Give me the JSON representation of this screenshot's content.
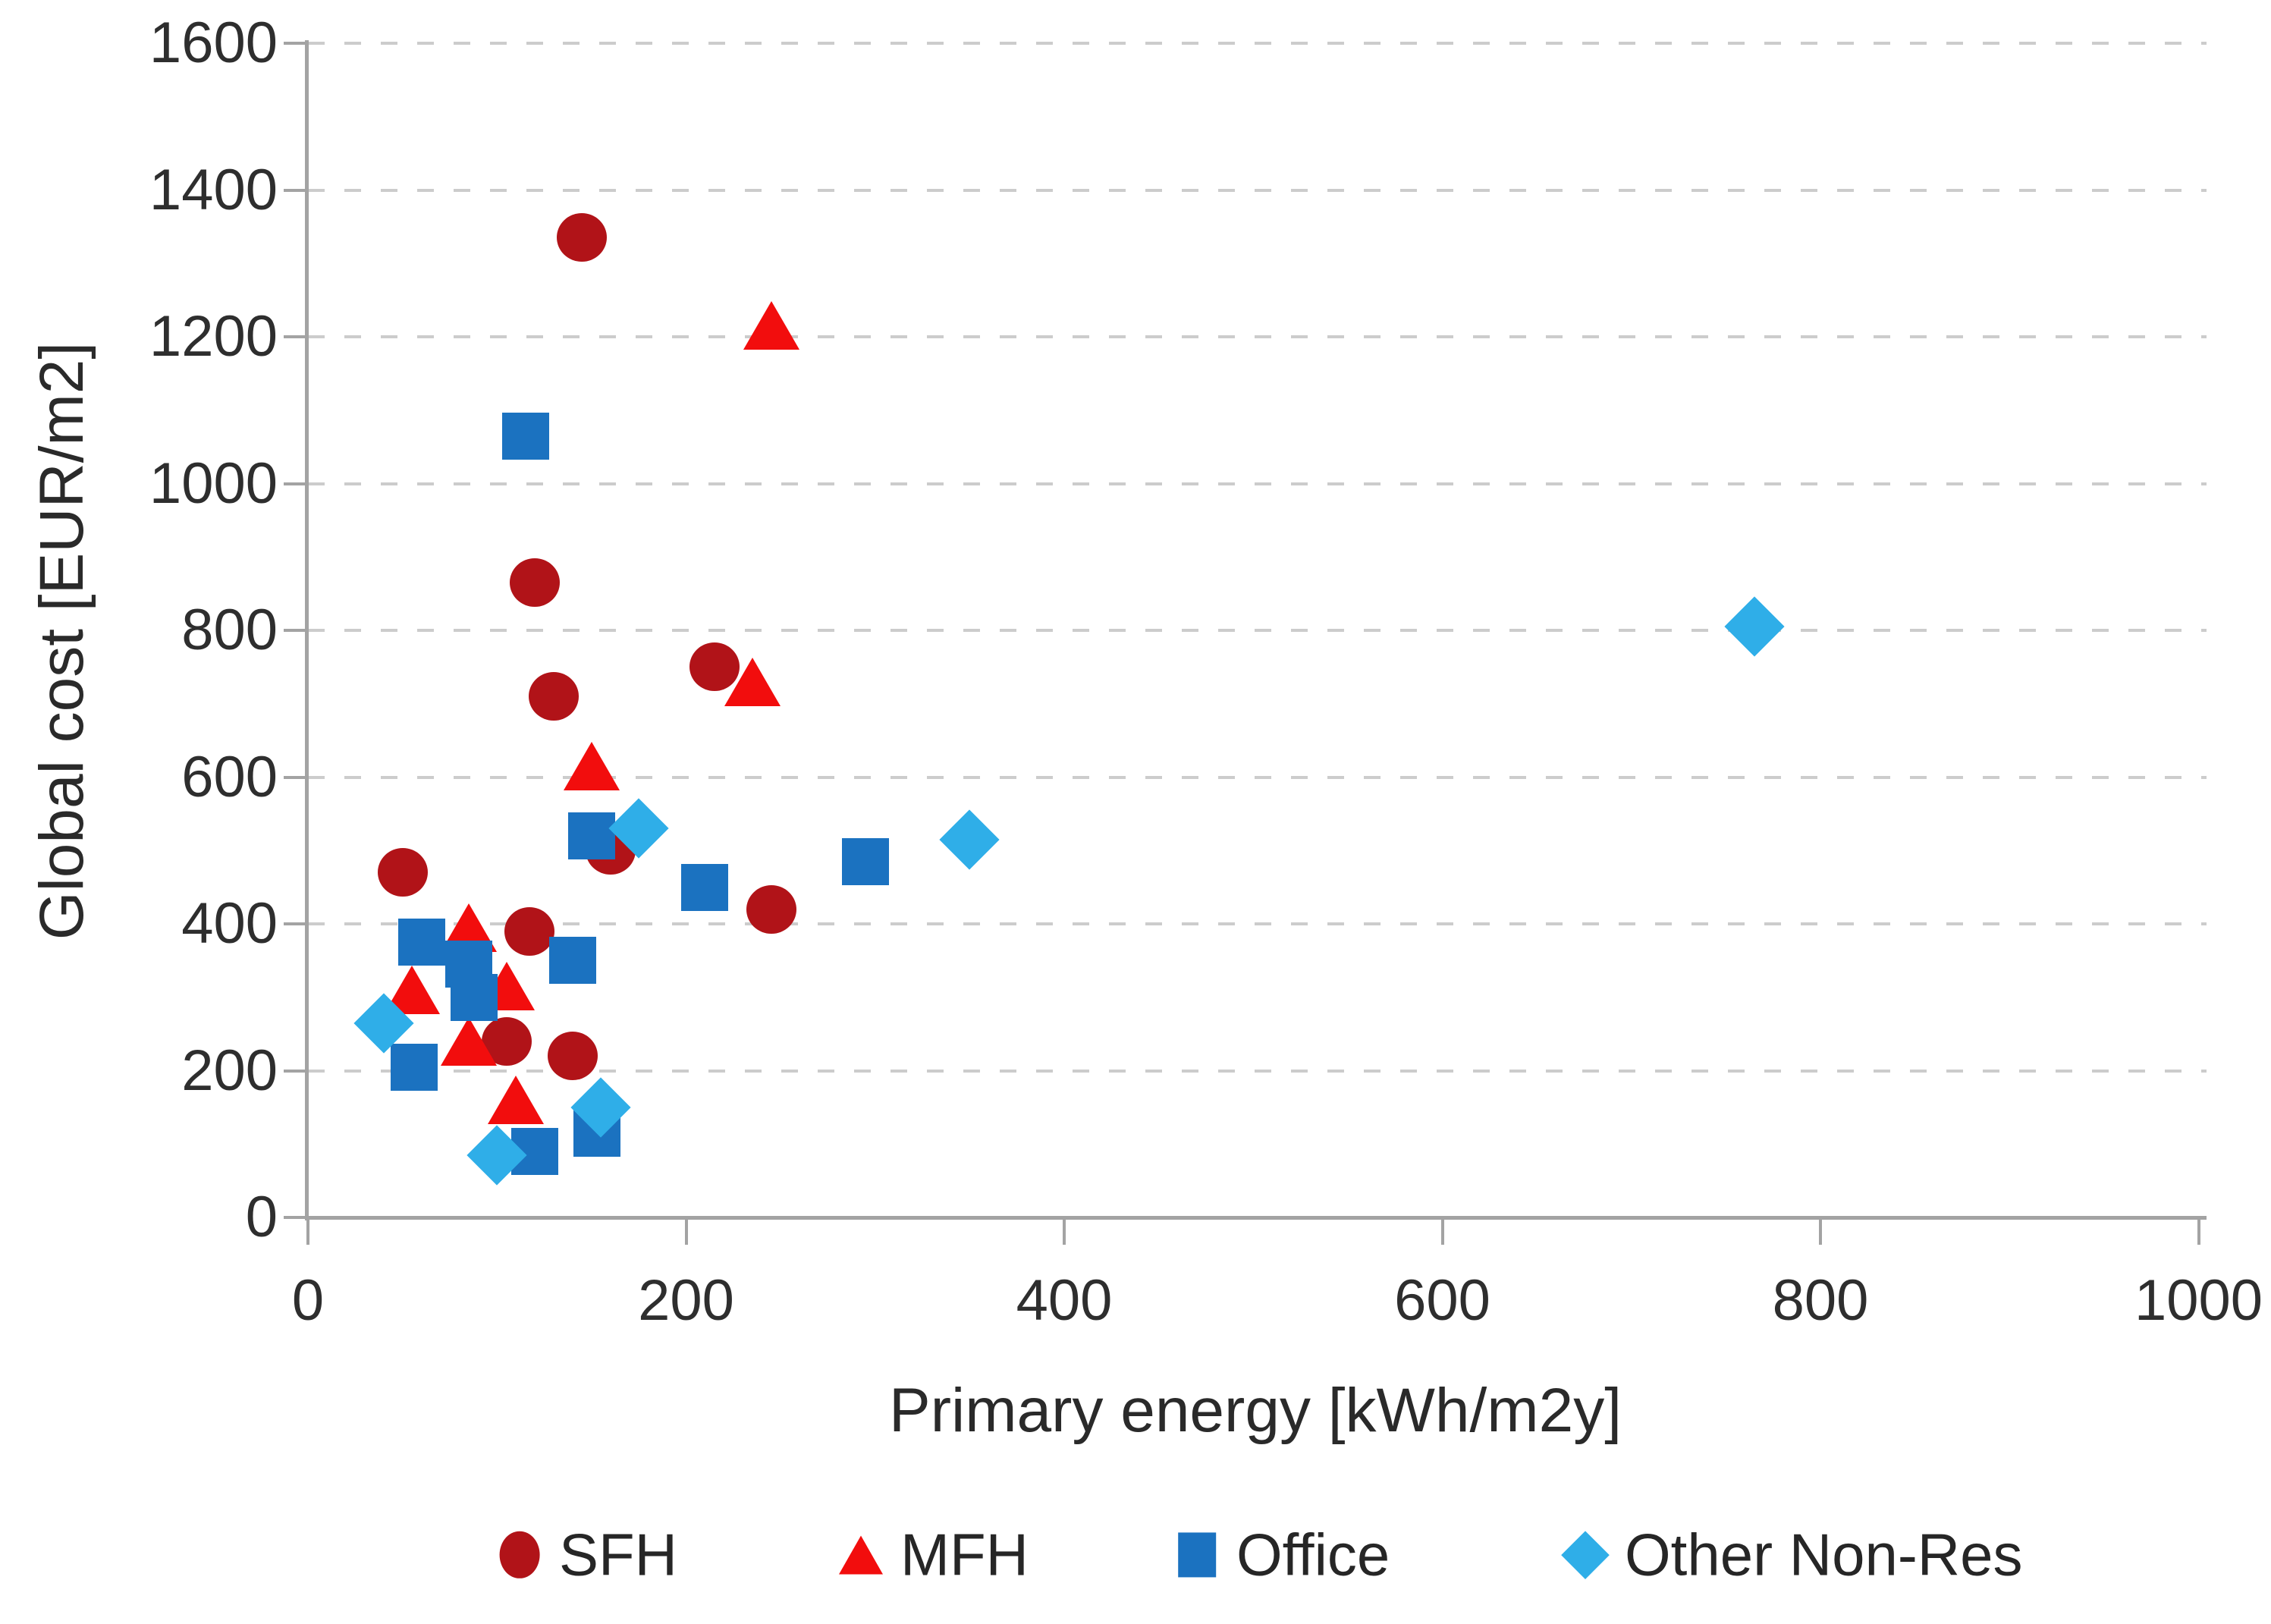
{
  "chart_data": {
    "type": "scatter",
    "title": "",
    "xlabel": "Primary energy [kWh/m2y]",
    "ylabel": "Global cost [EUR/m2]",
    "xlim": [
      0,
      1000
    ],
    "ylim": [
      0,
      1600
    ],
    "xticks": [
      0,
      200,
      400,
      600,
      800,
      1000
    ],
    "yticks": [
      0,
      200,
      400,
      600,
      800,
      1000,
      1200,
      1400,
      1600
    ],
    "grid": "horizontal-dashed",
    "legend_position": "bottom",
    "colors": {
      "grid": "#cccccc",
      "axis": "#a3a3a3",
      "text": "#2a2a2a"
    },
    "series": [
      {
        "name": "SFH",
        "marker": "circle",
        "color": "#b11318",
        "points": [
          [
            145,
            1335
          ],
          [
            120,
            865
          ],
          [
            215,
            750
          ],
          [
            130,
            710
          ],
          [
            160,
            500
          ],
          [
            50,
            470
          ],
          [
            245,
            420
          ],
          [
            117,
            390
          ],
          [
            105,
            240
          ],
          [
            140,
            220
          ]
        ]
      },
      {
        "name": "MFH",
        "marker": "triangle",
        "color": "#f20d0d",
        "points": [
          [
            245,
            1215
          ],
          [
            235,
            730
          ],
          [
            150,
            615
          ],
          [
            85,
            395
          ],
          [
            105,
            315
          ],
          [
            55,
            310
          ],
          [
            85,
            240
          ],
          [
            110,
            160
          ]
        ]
      },
      {
        "name": "Office",
        "marker": "square",
        "color": "#1b72c0",
        "points": [
          [
            115,
            1065
          ],
          [
            150,
            520
          ],
          [
            295,
            485
          ],
          [
            210,
            450
          ],
          [
            60,
            375
          ],
          [
            140,
            350
          ],
          [
            85,
            345
          ],
          [
            88,
            300
          ],
          [
            56,
            205
          ],
          [
            153,
            115
          ],
          [
            120,
            90
          ]
        ]
      },
      {
        "name": "Other Non-Res",
        "marker": "diamond",
        "color": "#2faee8",
        "points": [
          [
            765,
            805
          ],
          [
            350,
            515
          ],
          [
            175,
            530
          ],
          [
            40,
            265
          ],
          [
            155,
            150
          ],
          [
            100,
            85
          ]
        ]
      }
    ]
  }
}
